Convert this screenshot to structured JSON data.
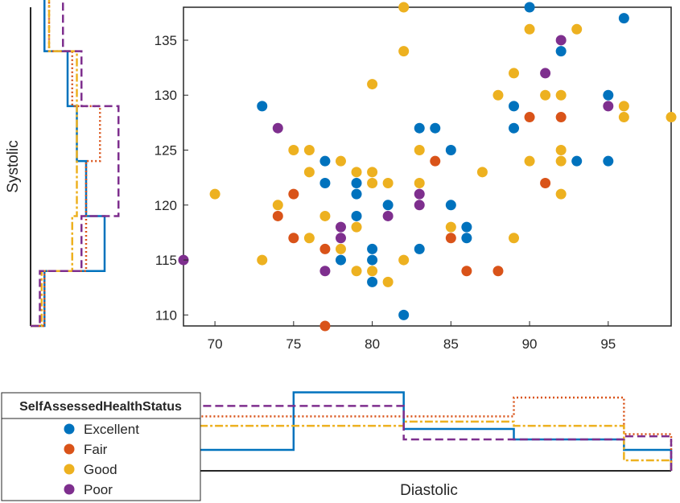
{
  "colors": {
    "excellent": "#0072BD",
    "fair": "#D95319",
    "good": "#EDB120",
    "poor": "#7E2F8E",
    "axis": "#262626"
  },
  "chart_data": {
    "type": "scatter",
    "title": "",
    "xlabel": "Diastolic",
    "ylabel": "Systolic",
    "xlim": [
      68,
      99
    ],
    "ylim": [
      109,
      138
    ],
    "xticks": [
      "70",
      "75",
      "80",
      "85",
      "90",
      "95"
    ],
    "yticks": [
      "110",
      "115",
      "120",
      "125",
      "130",
      "135"
    ],
    "grid": false,
    "legend": {
      "title": "SelfAssessedHealthStatus",
      "placement": "bottom-left",
      "entries": [
        "Excellent",
        "Fair",
        "Good",
        "Poor"
      ]
    },
    "series": [
      {
        "name": "Excellent",
        "points": [
          [
            73,
            129
          ],
          [
            77,
            124
          ],
          [
            77,
            122
          ],
          [
            79,
            122
          ],
          [
            79,
            121
          ],
          [
            79,
            119
          ],
          [
            78,
            115
          ],
          [
            80,
            116
          ],
          [
            80,
            115
          ],
          [
            80,
            113
          ],
          [
            81,
            120
          ],
          [
            82,
            110
          ],
          [
            83,
            127
          ],
          [
            83,
            116
          ],
          [
            84,
            127
          ],
          [
            85,
            125
          ],
          [
            85,
            120
          ],
          [
            86,
            118
          ],
          [
            86,
            117
          ],
          [
            89,
            129
          ],
          [
            89,
            127
          ],
          [
            90,
            138
          ],
          [
            92,
            134
          ],
          [
            93,
            124
          ],
          [
            95,
            130
          ],
          [
            95,
            124
          ],
          [
            96,
            137
          ]
        ]
      },
      {
        "name": "Fair",
        "points": [
          [
            74,
            119
          ],
          [
            75,
            121
          ],
          [
            75,
            117
          ],
          [
            77,
            116
          ],
          [
            77,
            109
          ],
          [
            84,
            124
          ],
          [
            85,
            117
          ],
          [
            86,
            114
          ],
          [
            88,
            114
          ],
          [
            90,
            128
          ],
          [
            91,
            122
          ],
          [
            92,
            128
          ]
        ]
      },
      {
        "name": "Good",
        "points": [
          [
            70,
            121
          ],
          [
            73,
            115
          ],
          [
            74,
            120
          ],
          [
            75,
            125
          ],
          [
            76,
            125
          ],
          [
            76,
            123
          ],
          [
            76,
            117
          ],
          [
            77,
            119
          ],
          [
            78,
            124
          ],
          [
            78,
            116
          ],
          [
            79,
            123
          ],
          [
            79,
            118
          ],
          [
            79,
            114
          ],
          [
            80,
            131
          ],
          [
            80,
            123
          ],
          [
            80,
            122
          ],
          [
            80,
            114
          ],
          [
            81,
            122
          ],
          [
            81,
            113
          ],
          [
            82,
            138
          ],
          [
            82,
            134
          ],
          [
            82,
            115
          ],
          [
            83,
            125
          ],
          [
            83,
            122
          ],
          [
            85,
            118
          ],
          [
            87,
            123
          ],
          [
            88,
            130
          ],
          [
            89,
            132
          ],
          [
            89,
            117
          ],
          [
            90,
            136
          ],
          [
            90,
            124
          ],
          [
            91,
            130
          ],
          [
            92,
            130
          ],
          [
            92,
            125
          ],
          [
            92,
            124
          ],
          [
            92,
            121
          ],
          [
            93,
            136
          ],
          [
            96,
            129
          ],
          [
            96,
            128
          ],
          [
            99,
            128
          ]
        ]
      },
      {
        "name": "Poor",
        "points": [
          [
            68,
            115
          ],
          [
            74,
            127
          ],
          [
            77,
            114
          ],
          [
            78,
            118
          ],
          [
            78,
            117
          ],
          [
            81,
            119
          ],
          [
            83,
            121
          ],
          [
            83,
            120
          ],
          [
            91,
            132
          ],
          [
            92,
            135
          ],
          [
            95,
            129
          ]
        ]
      }
    ],
    "marginal_histograms": {
      "x_bin_edges": [
        68,
        75,
        82,
        89,
        96,
        99
      ],
      "x_heights": {
        "Excellent": [
          0.2,
          0.75,
          0.4,
          0.3,
          0.2
        ],
        "Fair": [
          0.52,
          0.52,
          0.52,
          0.7,
          0.35
        ],
        "Good": [
          0.43,
          0.43,
          0.47,
          0.43,
          0.1
        ],
        "Poor": [
          0.62,
          0.62,
          0.3,
          0.3,
          0.33
        ]
      },
      "y_bin_edges": [
        109,
        114,
        119,
        124,
        129,
        134,
        139
      ],
      "y_heights": {
        "Excellent": [
          0.15,
          0.8,
          0.6,
          0.5,
          0.4,
          0.15
        ],
        "Fair": [
          0.15,
          0.6,
          0.6,
          0.75,
          0.45,
          0.2
        ],
        "Good": [
          0.12,
          0.45,
          0.5,
          0.5,
          0.5,
          0.2
        ],
        "Poor": [
          0.1,
          0.55,
          0.95,
          0.95,
          0.55,
          0.35
        ]
      }
    }
  }
}
